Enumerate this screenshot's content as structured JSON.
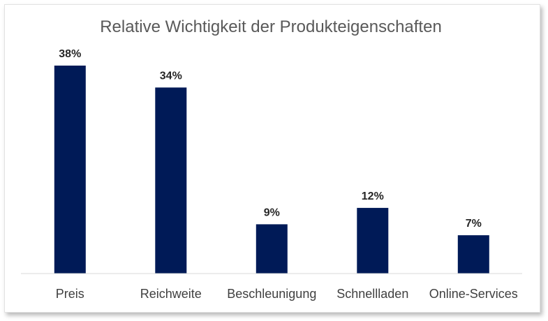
{
  "chart_data": {
    "type": "bar",
    "title": "Relative Wichtigkeit der Produkteigenschaften",
    "categories": [
      "Preis",
      "Reichweite",
      "Beschleunigung",
      "Schnellladen",
      "Online-Services"
    ],
    "values": [
      38,
      34,
      9,
      12,
      7
    ],
    "data_labels": [
      "38%",
      "34%",
      "9%",
      "12%",
      "7%"
    ],
    "ylim": [
      0,
      38
    ],
    "grid": false,
    "legend": "none",
    "bar_color": "#001a57",
    "axis_color": "#d9d9d9"
  }
}
